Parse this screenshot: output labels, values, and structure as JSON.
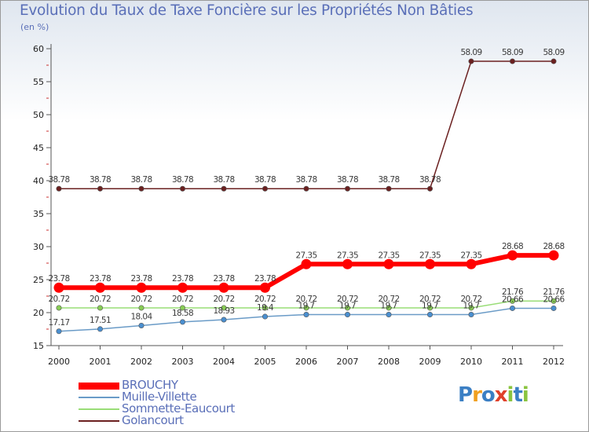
{
  "title": "Evolution du Taux de Taxe Foncière sur les Propriétés Non Bâties",
  "unit_label": "(en %)",
  "brand": {
    "letters": [
      "P",
      "r",
      "o",
      "x",
      "i",
      "t",
      "i"
    ],
    "colors": [
      "#3b7fc4",
      "#f0a020",
      "#3b7fc4",
      "#e0402a",
      "#8ac43f",
      "#3b7fc4",
      "#8ac43f"
    ]
  },
  "chart_data": {
    "type": "line",
    "title": "Evolution du Taux de Taxe Foncière sur les Propriétés Non Bâties",
    "ylabel": "(en %)",
    "ylim": [
      15,
      60
    ],
    "yticks": [
      15,
      20,
      25,
      30,
      35,
      40,
      45,
      50,
      55,
      60
    ],
    "x": [
      "2000",
      "2001",
      "2002",
      "2003",
      "2004",
      "2005",
      "2006",
      "2007",
      "2008",
      "2009",
      "2010",
      "2011",
      "2012"
    ],
    "series": [
      {
        "name": "BROUCHY",
        "color": "#ff0000",
        "values": [
          23.78,
          23.78,
          23.78,
          23.78,
          23.78,
          23.78,
          27.35,
          27.35,
          27.35,
          27.35,
          27.35,
          28.68,
          28.68
        ],
        "labels": [
          "23.78",
          "23.78",
          "23.78",
          "23.78",
          "23.78",
          "23.78",
          "27.35",
          "27.35",
          "27.35",
          "27.35",
          "27.35",
          "28.68",
          "28.68"
        ]
      },
      {
        "name": "Muille-Villette",
        "color": "#6a9bc7",
        "values": [
          17.17,
          17.51,
          18.04,
          18.58,
          18.93,
          19.4,
          19.7,
          19.7,
          19.7,
          19.7,
          19.7,
          20.66,
          20.66
        ],
        "labels": [
          "17.17",
          "17.51",
          "18.04",
          "18.58",
          "18.93",
          "19.4",
          "19.7",
          "19.7",
          "19.7",
          "19.7",
          "19.7",
          "20.66",
          "20.66"
        ]
      },
      {
        "name": "Sommette-Eaucourt",
        "color": "#99dd77",
        "values": [
          20.72,
          20.72,
          20.72,
          20.72,
          20.72,
          20.72,
          20.72,
          20.72,
          20.72,
          20.72,
          20.72,
          21.76,
          21.76
        ],
        "labels": [
          "20.72",
          "20.72",
          "20.72",
          "20.72",
          "20.72",
          "20.72",
          "20.72",
          "20.72",
          "20.72",
          "20.72",
          "20.72",
          "21.76",
          "21.76"
        ]
      },
      {
        "name": "Golancourt",
        "color": "#6b2020",
        "values": [
          38.78,
          38.78,
          38.78,
          38.78,
          38.78,
          38.78,
          38.78,
          38.78,
          38.78,
          38.78,
          58.09,
          58.09,
          58.09
        ],
        "labels": [
          "38.78",
          "38.78",
          "38.78",
          "38.78",
          "38.78",
          "38.78",
          "38.78",
          "38.78",
          "38.78",
          "38.78",
          "58.09",
          "58.09",
          "58.09"
        ]
      }
    ]
  }
}
